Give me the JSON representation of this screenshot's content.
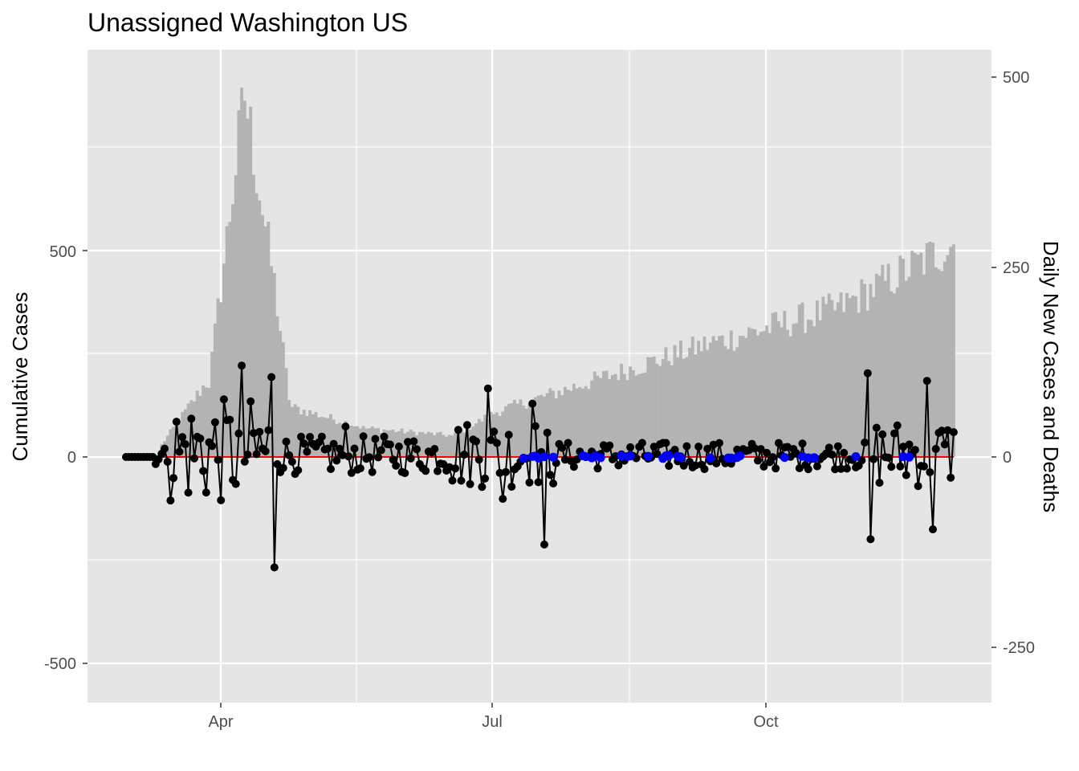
{
  "chart_data": {
    "type": "bar+line",
    "title": "Unassigned Washington US",
    "ylabel_left": "Cumulative Cases",
    "ylabel_right": "Daily New Cases and Deaths",
    "x_ticks": [
      "Apr",
      "Jul",
      "Oct"
    ],
    "y_left_ticks": [
      "-500",
      "0",
      "500"
    ],
    "y_right_ticks": [
      "-250",
      "0",
      "250",
      "500"
    ],
    "grid": true,
    "colors": {
      "panel": "#e5e5e5",
      "grid": "#ffffff",
      "bars": "#b3b3b3",
      "line": "#000000",
      "points": "#000000",
      "death_points": "#0000ff",
      "deaths_line": "#ff0000"
    },
    "series": [
      {
        "description": "cumulative cases (grey bars, left axis)"
      },
      {
        "description": "daily new cases (black line+points, right axis)"
      },
      {
        "description": "daily new deaths (blue points, right axis)"
      },
      {
        "description": "deaths reference (red line, right axis)"
      }
    ]
  }
}
